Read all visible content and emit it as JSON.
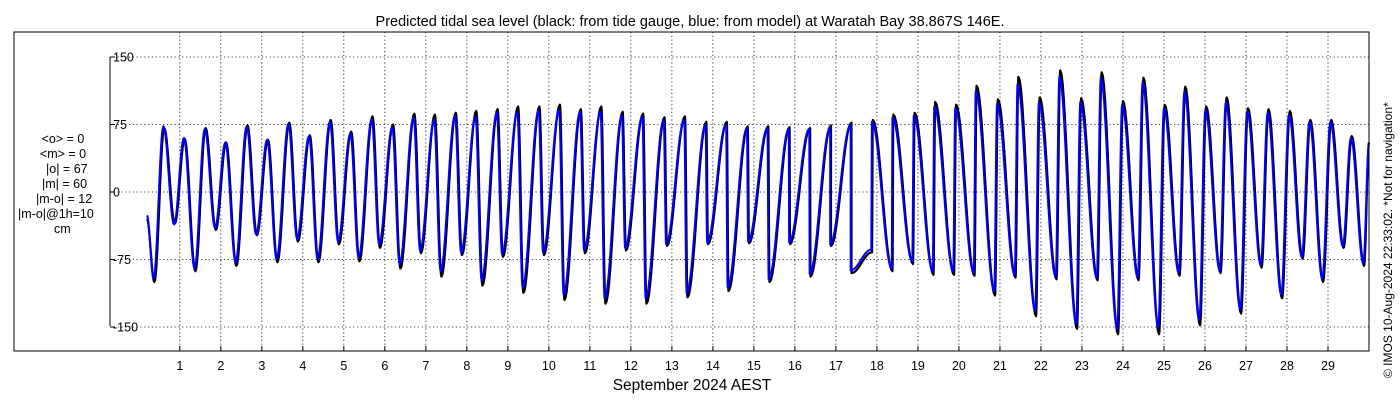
{
  "chart_data": {
    "type": "line",
    "title": "Predicted tidal sea level (black: from tide gauge, blue: from model) at Waratah Bay 38.867S 146E.",
    "xlabel": "September 2024 AEST",
    "ylabel": "",
    "x_unit": "day of September 2024",
    "xlim": [
      0.2,
      30.0
    ],
    "ylim": [
      -160,
      160
    ],
    "y_ticks": [
      -150,
      -75,
      0,
      75,
      150
    ],
    "x_ticks": [
      1,
      2,
      3,
      4,
      5,
      6,
      7,
      8,
      9,
      10,
      11,
      12,
      13,
      14,
      15,
      16,
      17,
      18,
      19,
      20,
      21,
      22,
      23,
      24,
      25,
      26,
      27,
      28,
      29
    ],
    "grid": true,
    "grid_style": "dotted",
    "series": [
      {
        "color": "#000000",
        "high_tides": [
          [
            0.62,
            71
          ],
          [
            1.12,
            59
          ],
          [
            1.63,
            71
          ],
          [
            2.13,
            55
          ],
          [
            2.65,
            74
          ],
          [
            3.15,
            58
          ],
          [
            3.67,
            77
          ],
          [
            4.17,
            63
          ],
          [
            4.68,
            80
          ],
          [
            5.18,
            67
          ],
          [
            5.7,
            84
          ],
          [
            6.2,
            75
          ],
          [
            6.72,
            87
          ],
          [
            7.22,
            86
          ],
          [
            7.73,
            88
          ],
          [
            8.23,
            90
          ],
          [
            8.75,
            92
          ],
          [
            9.25,
            95
          ],
          [
            9.77,
            95
          ],
          [
            10.27,
            97
          ],
          [
            10.78,
            92
          ],
          [
            11.28,
            95
          ],
          [
            11.8,
            89
          ],
          [
            12.3,
            87
          ],
          [
            12.82,
            83
          ],
          [
            13.32,
            84
          ],
          [
            13.84,
            78
          ],
          [
            14.34,
            78
          ],
          [
            14.85,
            73
          ],
          [
            15.35,
            73
          ],
          [
            15.87,
            72
          ],
          [
            16.37,
            71
          ],
          [
            16.88,
            74
          ],
          [
            17.38,
            77
          ],
          [
            17.9,
            80
          ],
          [
            18.4,
            86
          ],
          [
            18.92,
            88
          ],
          [
            19.42,
            100
          ],
          [
            19.93,
            97
          ],
          [
            20.43,
            118
          ],
          [
            20.95,
            103
          ],
          [
            21.45,
            128
          ],
          [
            21.97,
            105
          ],
          [
            22.47,
            135
          ],
          [
            22.98,
            104
          ],
          [
            23.48,
            133
          ],
          [
            24.0,
            101
          ],
          [
            24.5,
            127
          ],
          [
            25.02,
            97
          ],
          [
            25.52,
            117
          ],
          [
            26.03,
            95
          ],
          [
            26.53,
            105
          ],
          [
            27.05,
            93
          ],
          [
            27.55,
            92
          ],
          [
            28.07,
            90
          ],
          [
            28.57,
            80
          ],
          [
            29.08,
            80
          ],
          [
            29.58,
            62
          ],
          [
            30.0,
            55
          ]
        ],
        "low_tides": [
          [
            0.38,
            -100
          ],
          [
            0.88,
            -35
          ],
          [
            1.38,
            -88
          ],
          [
            1.88,
            -42
          ],
          [
            2.38,
            -82
          ],
          [
            2.88,
            -48
          ],
          [
            3.38,
            -78
          ],
          [
            3.88,
            -55
          ],
          [
            4.38,
            -78
          ],
          [
            4.88,
            -58
          ],
          [
            5.38,
            -77
          ],
          [
            5.88,
            -62
          ],
          [
            6.38,
            -85
          ],
          [
            6.88,
            -68
          ],
          [
            7.38,
            -94
          ],
          [
            7.88,
            -70
          ],
          [
            8.38,
            -104
          ],
          [
            8.88,
            -72
          ],
          [
            9.38,
            -112
          ],
          [
            9.88,
            -70
          ],
          [
            10.38,
            -120
          ],
          [
            10.88,
            -68
          ],
          [
            11.38,
            -124
          ],
          [
            11.88,
            -65
          ],
          [
            12.38,
            -124
          ],
          [
            12.88,
            -60
          ],
          [
            13.38,
            -117
          ],
          [
            13.88,
            -58
          ],
          [
            14.38,
            -110
          ],
          [
            14.88,
            -57
          ],
          [
            15.38,
            -100
          ],
          [
            15.88,
            -58
          ],
          [
            16.38,
            -94
          ],
          [
            16.88,
            -60
          ],
          [
            17.38,
            -90
          ],
          [
            17.88,
            -67
          ],
          [
            18.38,
            -88
          ],
          [
            18.88,
            -80
          ],
          [
            19.38,
            -92
          ],
          [
            19.88,
            -92
          ],
          [
            20.38,
            -93
          ],
          [
            20.88,
            -115
          ],
          [
            21.38,
            -95
          ],
          [
            21.88,
            -138
          ],
          [
            22.38,
            -97
          ],
          [
            22.88,
            -152
          ],
          [
            23.38,
            -98
          ],
          [
            23.88,
            -158
          ],
          [
            24.38,
            -98
          ],
          [
            24.88,
            -158
          ],
          [
            25.38,
            -93
          ],
          [
            25.88,
            -148
          ],
          [
            26.38,
            -90
          ],
          [
            26.88,
            -135
          ],
          [
            27.38,
            -84
          ],
          [
            27.88,
            -118
          ],
          [
            28.38,
            -74
          ],
          [
            28.88,
            -100
          ],
          [
            29.38,
            -62
          ],
          [
            29.88,
            -82
          ]
        ]
      },
      {
        "color": "#0000ff",
        "high_tides": [
          [
            0.6,
            73
          ],
          [
            1.1,
            60
          ],
          [
            1.61,
            70
          ],
          [
            2.11,
            55
          ],
          [
            2.63,
            73
          ],
          [
            3.13,
            58
          ],
          [
            3.65,
            76
          ],
          [
            4.15,
            62
          ],
          [
            4.66,
            78
          ],
          [
            5.16,
            65
          ],
          [
            5.68,
            81
          ],
          [
            6.18,
            72
          ],
          [
            6.7,
            83
          ],
          [
            7.2,
            80
          ],
          [
            7.71,
            85
          ],
          [
            8.21,
            84
          ],
          [
            8.73,
            88
          ],
          [
            9.23,
            89
          ],
          [
            9.75,
            91
          ],
          [
            10.25,
            91
          ],
          [
            10.76,
            89
          ],
          [
            11.26,
            89
          ],
          [
            11.78,
            85
          ],
          [
            12.28,
            84
          ],
          [
            12.8,
            80
          ],
          [
            13.3,
            80
          ],
          [
            13.82,
            75
          ],
          [
            14.32,
            75
          ],
          [
            14.83,
            71
          ],
          [
            15.33,
            71
          ],
          [
            15.85,
            70
          ],
          [
            16.35,
            70
          ],
          [
            16.86,
            72
          ],
          [
            17.36,
            75
          ],
          [
            17.88,
            78
          ],
          [
            18.38,
            83
          ],
          [
            18.9,
            85
          ],
          [
            19.4,
            95
          ],
          [
            19.91,
            93
          ],
          [
            20.41,
            112
          ],
          [
            20.93,
            98
          ],
          [
            21.43,
            120
          ],
          [
            21.95,
            100
          ],
          [
            22.45,
            128
          ],
          [
            22.96,
            100
          ],
          [
            23.46,
            127
          ],
          [
            23.98,
            97
          ],
          [
            24.48,
            122
          ],
          [
            25.0,
            93
          ],
          [
            25.5,
            112
          ],
          [
            26.01,
            91
          ],
          [
            26.51,
            100
          ],
          [
            27.03,
            90
          ],
          [
            27.53,
            88
          ],
          [
            28.05,
            86
          ],
          [
            28.55,
            78
          ],
          [
            29.06,
            78
          ],
          [
            29.56,
            60
          ],
          [
            30.0,
            52
          ]
        ],
        "low_tides": [
          [
            0.36,
            -96
          ],
          [
            0.86,
            -36
          ],
          [
            1.36,
            -85
          ],
          [
            1.86,
            -40
          ],
          [
            2.36,
            -78
          ],
          [
            2.86,
            -47
          ],
          [
            3.36,
            -74
          ],
          [
            3.86,
            -52
          ],
          [
            4.36,
            -74
          ],
          [
            4.86,
            -55
          ],
          [
            5.36,
            -73
          ],
          [
            5.86,
            -58
          ],
          [
            6.36,
            -80
          ],
          [
            6.86,
            -65
          ],
          [
            7.36,
            -88
          ],
          [
            7.86,
            -67
          ],
          [
            8.36,
            -98
          ],
          [
            8.86,
            -69
          ],
          [
            9.36,
            -106
          ],
          [
            9.86,
            -67
          ],
          [
            10.36,
            -114
          ],
          [
            10.86,
            -65
          ],
          [
            11.36,
            -118
          ],
          [
            11.86,
            -62
          ],
          [
            12.36,
            -118
          ],
          [
            12.86,
            -58
          ],
          [
            13.36,
            -112
          ],
          [
            13.86,
            -56
          ],
          [
            14.36,
            -106
          ],
          [
            14.86,
            -55
          ],
          [
            15.36,
            -97
          ],
          [
            15.86,
            -56
          ],
          [
            16.36,
            -91
          ],
          [
            16.86,
            -58
          ],
          [
            17.36,
            -87
          ],
          [
            17.86,
            -64
          ],
          [
            18.36,
            -85
          ],
          [
            18.86,
            -77
          ],
          [
            19.36,
            -88
          ],
          [
            19.86,
            -88
          ],
          [
            20.36,
            -90
          ],
          [
            20.86,
            -110
          ],
          [
            21.36,
            -92
          ],
          [
            21.86,
            -132
          ],
          [
            22.36,
            -94
          ],
          [
            22.86,
            -146
          ],
          [
            23.36,
            -95
          ],
          [
            23.86,
            -152
          ],
          [
            24.36,
            -95
          ],
          [
            24.86,
            -150
          ],
          [
            25.36,
            -90
          ],
          [
            25.86,
            -142
          ],
          [
            26.36,
            -87
          ],
          [
            26.86,
            -130
          ],
          [
            27.36,
            -81
          ],
          [
            27.86,
            -114
          ],
          [
            28.36,
            -72
          ],
          [
            28.86,
            -96
          ],
          [
            29.36,
            -60
          ],
          [
            29.86,
            -79
          ]
        ]
      }
    ]
  },
  "stats": {
    "lines": [
      "<o> = 0",
      "<m> = 0",
      "|o| = 67",
      "|m| = 60",
      "|m-o| = 12",
      "|m-o|@1h=10",
      "cm"
    ]
  },
  "watermark": "© IMOS 10-Aug-2024 22:33:02. *Not for navigation*"
}
